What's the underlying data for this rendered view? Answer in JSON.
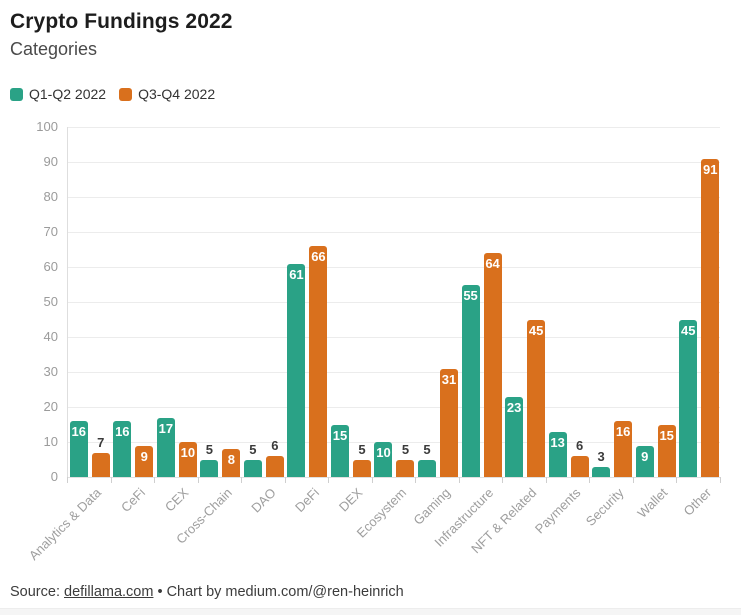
{
  "header": {
    "title": "Crypto Fundings 2022",
    "subtitle": "Categories"
  },
  "legend": [
    {
      "label": "Q1-Q2 2022",
      "color": "#2aa286"
    },
    {
      "label": "Q3-Q4 2022",
      "color": "#d9701d"
    }
  ],
  "chart_data": {
    "type": "bar",
    "title": "Crypto Fundings 2022",
    "subtitle": "Categories",
    "categories": [
      "Analytics & Data",
      "CeFi",
      "CEX",
      "Cross-Chain",
      "DAO",
      "DeFi",
      "DEX",
      "Ecosystem",
      "Gaming",
      "Infrastructure",
      "NFT & Related",
      "Payments",
      "Security",
      "Wallet",
      "Other"
    ],
    "series": [
      {
        "name": "Q1-Q2 2022",
        "color": "#2aa286",
        "values": [
          16,
          16,
          17,
          5,
          5,
          61,
          15,
          10,
          5,
          55,
          23,
          13,
          3,
          9,
          45
        ]
      },
      {
        "name": "Q3-Q4 2022",
        "color": "#d9701d",
        "values": [
          7,
          9,
          10,
          8,
          6,
          66,
          5,
          5,
          31,
          64,
          45,
          6,
          16,
          15,
          91
        ]
      }
    ],
    "xlabel": "",
    "ylabel": "",
    "ylim": [
      0,
      100
    ],
    "yticks": [
      0,
      10,
      20,
      30,
      40,
      50,
      60,
      70,
      80,
      90,
      100
    ],
    "grid": true,
    "legend_position": "top-left",
    "value_labels": true
  },
  "footer": {
    "source_prefix": "Source: ",
    "source_link": "defillama.com",
    "credit_suffix": " • Chart by medium.com/@ren-heinrich"
  }
}
